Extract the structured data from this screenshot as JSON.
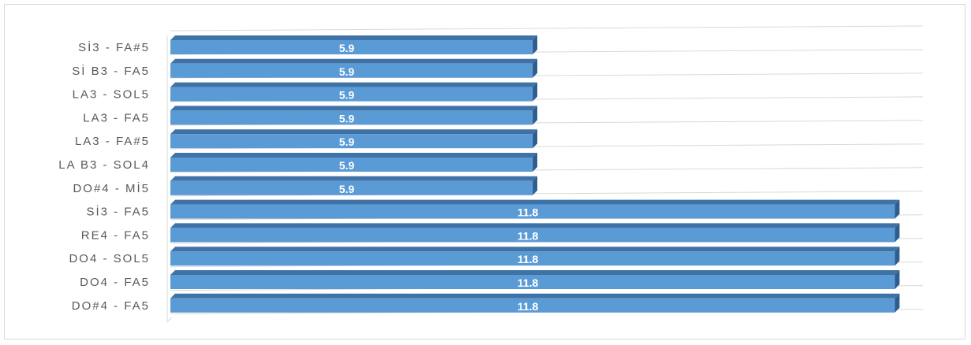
{
  "chart_data": {
    "type": "bar",
    "orientation": "horizontal",
    "categories": [
      "Sİ3 - FA#5",
      "Sİ B3 - FA5",
      "LA3 - SOL5",
      "LA3 - FA5",
      "LA3 - FA#5",
      "LA B3 - SOL4",
      "DO#4 - Mİ5",
      "Sİ3 - FA5",
      "RE4 - FA5",
      "DO4 - SOL5",
      "DO4 - FA5",
      "DO#4 - FA5"
    ],
    "values": [
      5.9,
      5.9,
      5.9,
      5.9,
      5.9,
      5.9,
      5.9,
      11.8,
      11.8,
      11.8,
      11.8,
      11.8
    ],
    "data_labels": [
      "5.9",
      "5.9",
      "5.9",
      "5.9",
      "5.9",
      "5.9",
      "5.9",
      "11.8",
      "11.8",
      "11.8",
      "11.8",
      "11.8"
    ],
    "xlim": [
      0,
      12
    ],
    "grid": true,
    "legend": "none",
    "title": "",
    "xlabel": "",
    "ylabel": "",
    "colors": {
      "bar_front": "#5b9bd5",
      "bar_top": "#3f73a8",
      "bar_side": "#2e5d8e",
      "gridline": "#d9d9d9",
      "label": "#595959",
      "value_label": "#ffffff"
    }
  }
}
